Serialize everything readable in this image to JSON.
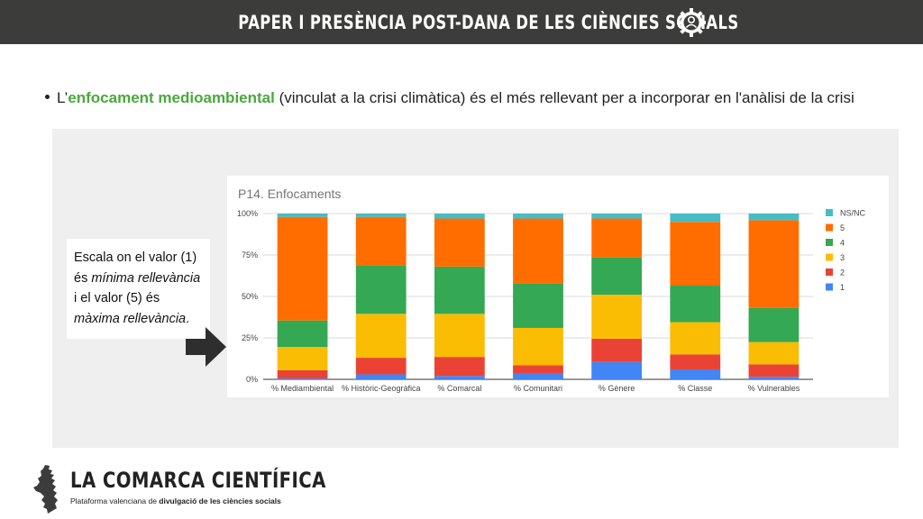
{
  "header": {
    "title": "PAPER I PRESÈNCIA POST-DANA DE LES CIÈNCIES SOCIALS",
    "icon": "brain-gear-icon"
  },
  "bullet": {
    "prefix": "L’",
    "highlight": "enfocament medioambiental",
    "suffix": " (vinculat a la crisi climàtica) és el més rellevant per a incorporar en l'anàlisi de la crisi",
    "highlight_color": "#4aa83c"
  },
  "note": {
    "line1": "Escala on el valor (1)",
    "line2_prefix": "és ",
    "line2_em": "mínima rellevància",
    "line3": "i el valor (5) és",
    "line4_em": "màxima rellevància",
    "line4_suffix": "."
  },
  "chart_data": {
    "type": "bar",
    "stacked": true,
    "title": "P14. Enfocaments",
    "categories": [
      "% Mediambiental",
      "% Històric-Geogràfica",
      "% Comarcal",
      "% Comunitari",
      "% Gènere",
      "% Classe",
      "% Vulnerables"
    ],
    "yticks": [
      "0%",
      "25%",
      "50%",
      "75%",
      "100%"
    ],
    "ylim": [
      0,
      100
    ],
    "series": [
      {
        "name": "1",
        "color": "#4285f4",
        "values": [
          0.5,
          3,
          2,
          3.5,
          10.5,
          6,
          1.5
        ]
      },
      {
        "name": "2",
        "color": "#ea4335",
        "values": [
          5,
          10,
          11.5,
          5,
          14,
          9,
          7.5
        ]
      },
      {
        "name": "3",
        "color": "#fbbc04",
        "values": [
          14,
          26.5,
          26,
          22.5,
          26.5,
          19.5,
          13.5
        ]
      },
      {
        "name": "4",
        "color": "#34a853",
        "values": [
          16,
          29,
          28.5,
          27,
          22.5,
          22,
          20.5
        ]
      },
      {
        "name": "5",
        "color": "#ff6d01",
        "values": [
          62.5,
          29.5,
          29,
          39,
          23.5,
          38.5,
          53
        ]
      },
      {
        "name": "NS/NC",
        "color": "#46bdc6",
        "values": [
          2,
          2,
          3,
          3,
          3,
          5,
          4
        ]
      }
    ],
    "legend": [
      "NS/NC",
      "5",
      "4",
      "3",
      "2",
      "1"
    ],
    "legend_position": "right",
    "grid": true
  },
  "footer": {
    "brand": "LA COMARCA CIENTÍFICA",
    "tagline_prefix": "Plataforma valenciana de ",
    "tagline_bold": "divulgació de les ciències socials",
    "logo": "comunitat-valenciana-map-icon"
  }
}
